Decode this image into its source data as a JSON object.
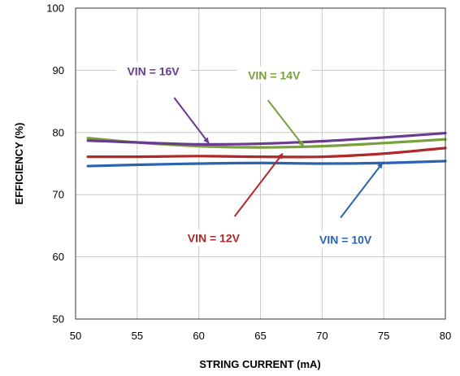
{
  "chart_data": {
    "type": "line",
    "title": "",
    "xlabel": "STRING CURRENT (mA)",
    "ylabel": "EFFICIENCY (%)",
    "xlim": [
      50,
      80
    ],
    "ylim": [
      50,
      100
    ],
    "xticks": [
      50,
      55,
      60,
      65,
      70,
      75,
      80
    ],
    "yticks": [
      50,
      60,
      70,
      80,
      90,
      100
    ],
    "grid": true,
    "legend": "none",
    "series": [
      {
        "name": "VIN = 16V",
        "color": "#6a3a8e",
        "x": [
          51,
          55,
          60,
          65,
          70,
          75,
          80
        ],
        "y": [
          78.7,
          78.4,
          78.1,
          78.2,
          78.6,
          79.2,
          79.9
        ],
        "annotation": {
          "label": "VIN = 16V",
          "label_at": [
            56.3,
            89.7
          ],
          "arrow_from": [
            58,
            85.6
          ],
          "arrow_to": [
            60.8,
            78.3
          ]
        }
      },
      {
        "name": "VIN = 14V",
        "color": "#78a03c",
        "x": [
          51,
          55,
          60,
          65,
          70,
          75,
          80
        ],
        "y": [
          79.1,
          78.4,
          77.8,
          77.6,
          77.8,
          78.3,
          78.9
        ],
        "annotation": {
          "label": "VIN = 14V",
          "label_at": [
            66.1,
            89.1
          ],
          "arrow_from": [
            65.6,
            85.2
          ],
          "arrow_to": [
            68.5,
            77.8
          ]
        }
      },
      {
        "name": "VIN = 12V",
        "color": "#b02828",
        "x": [
          51,
          55,
          60,
          65,
          70,
          75,
          80
        ],
        "y": [
          76.1,
          76.1,
          76.2,
          76.1,
          76.1,
          76.6,
          77.5
        ],
        "annotation": {
          "label": "VIN = 12V",
          "label_at": [
            61.2,
            62.9
          ],
          "arrow_from": [
            62.9,
            66.5
          ],
          "arrow_to": [
            66.8,
            76.6
          ]
        }
      },
      {
        "name": "VIN = 10V",
        "color": "#2a64b0",
        "x": [
          51,
          55,
          60,
          65,
          70,
          75,
          80
        ],
        "y": [
          74.6,
          74.8,
          75.0,
          75.1,
          75.0,
          75.1,
          75.4
        ],
        "annotation": {
          "label": "VIN = 10V",
          "label_at": [
            71.9,
            62.6
          ],
          "arrow_from": [
            71.5,
            66.3
          ],
          "arrow_to": [
            74.9,
            75.1
          ]
        }
      }
    ]
  }
}
